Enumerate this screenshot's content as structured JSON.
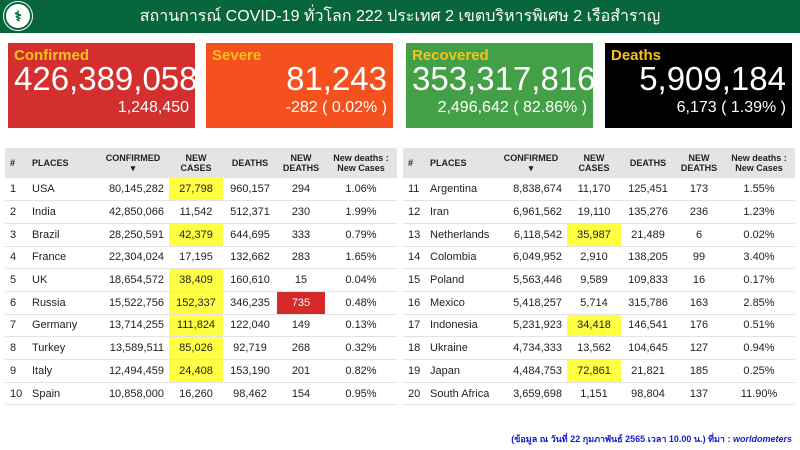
{
  "header": {
    "title": "สถานการณ์ COVID-19 ทั่วโลก 222 ประเทศ 2 เขตบริหารพิเศษ 2 เรือสำราญ"
  },
  "colors": {
    "header": "#07663a",
    "confirmed": "#d32f2f",
    "severe": "#f4511e",
    "recovered": "#43a047",
    "deaths": "#000000",
    "highlight": "#ffff44",
    "new_cases_text": "#2222dd",
    "deaths_text": "#ee3333"
  },
  "cards": [
    {
      "label": "Confirmed",
      "value": "426,389,058",
      "sub": "1,248,450"
    },
    {
      "label": "Severe",
      "value": "81,243",
      "sub": "-282 ( 0.02% )"
    },
    {
      "label": "Recovered",
      "value": "353,317,816",
      "sub": "2,496,642 ( 82.86% )"
    },
    {
      "label": "Deaths",
      "value": "5,909,184",
      "sub": "6,173 ( 1.39% )"
    }
  ],
  "columns": [
    "#",
    "PLACES",
    "CONFIRMED",
    "NEW CASES",
    "DEATHS",
    "NEW DEATHS",
    "New deaths : New Cases"
  ],
  "sort_indicator": "▾",
  "rows": [
    {
      "n": "1",
      "place": "USA",
      "confirmed": "80,145,282",
      "new_cases": "27,798",
      "deaths": "960,157",
      "new_deaths": "294",
      "ratio": "1.06%",
      "hl": true
    },
    {
      "n": "2",
      "place": "India",
      "confirmed": "42,850,066",
      "new_cases": "11,542",
      "deaths": "512,371",
      "new_deaths": "230",
      "ratio": "1.99%"
    },
    {
      "n": "3",
      "place": "Brazil",
      "confirmed": "28,250,591",
      "new_cases": "42,379",
      "deaths": "644,695",
      "new_deaths": "333",
      "ratio": "0.79%",
      "hl": true
    },
    {
      "n": "4",
      "place": "France",
      "confirmed": "22,304,024",
      "new_cases": "17,195",
      "deaths": "132,662",
      "new_deaths": "283",
      "ratio": "1.65%"
    },
    {
      "n": "5",
      "place": "UK",
      "confirmed": "18,654,572",
      "new_cases": "38,409",
      "deaths": "160,610",
      "new_deaths": "15",
      "ratio": "0.04%",
      "hl": true
    },
    {
      "n": "6",
      "place": "Russia",
      "confirmed": "15,522,756",
      "new_cases": "152,337",
      "deaths": "346,235",
      "new_deaths": "735",
      "ratio": "0.48%",
      "hl": true,
      "hld": true
    },
    {
      "n": "7",
      "place": "Germany",
      "confirmed": "13,714,255",
      "new_cases": "111,824",
      "deaths": "122,040",
      "new_deaths": "149",
      "ratio": "0.13%",
      "hl": true
    },
    {
      "n": "8",
      "place": "Turkey",
      "confirmed": "13,589,511",
      "new_cases": "85,026",
      "deaths": "92,719",
      "new_deaths": "268",
      "ratio": "0.32%",
      "hl": true
    },
    {
      "n": "9",
      "place": "Italy",
      "confirmed": "12,494,459",
      "new_cases": "24,408",
      "deaths": "153,190",
      "new_deaths": "201",
      "ratio": "0.82%",
      "hl": true
    },
    {
      "n": "10",
      "place": "Spain",
      "confirmed": "10,858,000",
      "new_cases": "16,260",
      "deaths": "98,462",
      "new_deaths": "154",
      "ratio": "0.95%"
    },
    {
      "n": "11",
      "place": "Argentina",
      "confirmed": "8,838,674",
      "new_cases": "11,170",
      "deaths": "125,451",
      "new_deaths": "173",
      "ratio": "1.55%"
    },
    {
      "n": "12",
      "place": "Iran",
      "confirmed": "6,961,562",
      "new_cases": "19,110",
      "deaths": "135,276",
      "new_deaths": "236",
      "ratio": "1.23%"
    },
    {
      "n": "13",
      "place": "Netherlands",
      "confirmed": "6,118,542",
      "new_cases": "35,987",
      "deaths": "21,489",
      "new_deaths": "6",
      "ratio": "0.02%",
      "hl": true
    },
    {
      "n": "14",
      "place": "Colombia",
      "confirmed": "6,049,952",
      "new_cases": "2,910",
      "deaths": "138,205",
      "new_deaths": "99",
      "ratio": "3.40%"
    },
    {
      "n": "15",
      "place": "Poland",
      "confirmed": "5,563,446",
      "new_cases": "9,589",
      "deaths": "109,833",
      "new_deaths": "16",
      "ratio": "0.17%"
    },
    {
      "n": "16",
      "place": "Mexico",
      "confirmed": "5,418,257",
      "new_cases": "5,714",
      "deaths": "315,786",
      "new_deaths": "163",
      "ratio": "2.85%"
    },
    {
      "n": "17",
      "place": "Indonesia",
      "confirmed": "5,231,923",
      "new_cases": "34,418",
      "deaths": "146,541",
      "new_deaths": "176",
      "ratio": "0.51%",
      "hl": true
    },
    {
      "n": "18",
      "place": "Ukraine",
      "confirmed": "4,734,333",
      "new_cases": "13,562",
      "deaths": "104,645",
      "new_deaths": "127",
      "ratio": "0.94%"
    },
    {
      "n": "19",
      "place": "Japan",
      "confirmed": "4,484,753",
      "new_cases": "72,861",
      "deaths": "21,821",
      "new_deaths": "185",
      "ratio": "0.25%",
      "hl": true
    },
    {
      "n": "20",
      "place": "South Africa",
      "confirmed": "3,659,698",
      "new_cases": "1,151",
      "deaths": "98,804",
      "new_deaths": "137",
      "ratio": "11.90%"
    }
  ],
  "footer": {
    "text": "(ข้อมูล ณ วันที่ 22 กุมภาพันธ์ 2565 เวลา 10.00 น.) ที่มา : ",
    "source": "worldometers"
  }
}
